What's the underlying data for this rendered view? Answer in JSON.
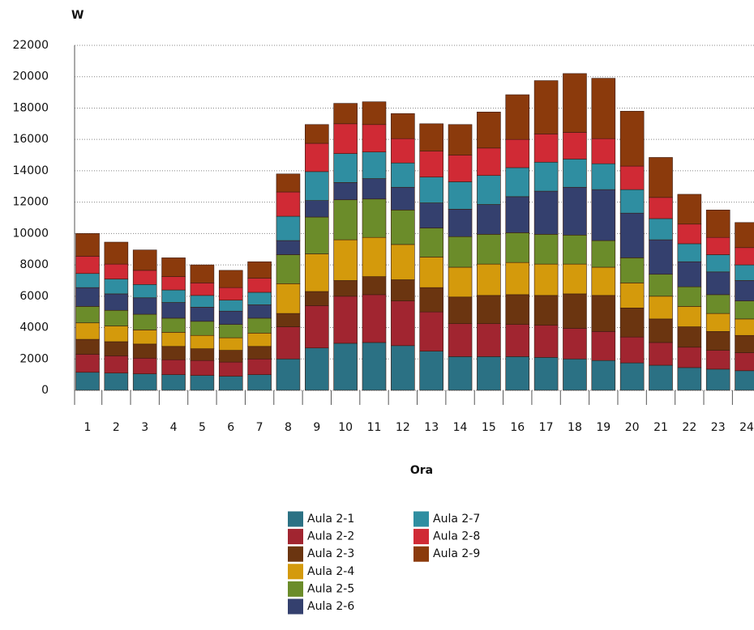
{
  "chart_data": {
    "type": "stacked_bar",
    "y_label": "W",
    "x_label": "Ora",
    "categories": [
      "1",
      "2",
      "3",
      "4",
      "5",
      "6",
      "7",
      "8",
      "9",
      "10",
      "11",
      "12",
      "13",
      "14",
      "15",
      "16",
      "17",
      "18",
      "19",
      "20",
      "21",
      "22",
      "23",
      "24"
    ],
    "ylim": [
      0,
      22000
    ],
    "yticks": [
      0,
      2000,
      4000,
      6000,
      8000,
      10000,
      12000,
      14000,
      16000,
      18000,
      20000,
      22000
    ],
    "grid": true,
    "series": [
      {
        "name": "Aula 2-1",
        "color": "#2b7184",
        "values": [
          1150,
          1100,
          1050,
          1000,
          950,
          900,
          1000,
          2000,
          2700,
          3000,
          3050,
          2850,
          2500,
          2150,
          2150,
          2150,
          2100,
          2000,
          1900,
          1750,
          1600,
          1450,
          1350,
          1250
        ]
      },
      {
        "name": "Aula 2-2",
        "color": "#a12530",
        "values": [
          1150,
          1100,
          1000,
          950,
          950,
          900,
          1000,
          2050,
          2700,
          3000,
          3050,
          2850,
          2500,
          2100,
          2100,
          2050,
          2050,
          1950,
          1850,
          1650,
          1450,
          1300,
          1200,
          1150
        ]
      },
      {
        "name": "Aula 2-3",
        "color": "#6b3510",
        "values": [
          950,
          900,
          900,
          850,
          750,
          750,
          800,
          850,
          900,
          1000,
          1150,
          1350,
          1550,
          1700,
          1800,
          1900,
          1900,
          2200,
          2300,
          1850,
          1500,
          1300,
          1200,
          1100
        ]
      },
      {
        "name": "Aula 2-4",
        "color": "#d49a0c",
        "values": [
          1050,
          1000,
          900,
          900,
          850,
          800,
          850,
          1900,
          2400,
          2600,
          2500,
          2250,
          1950,
          1900,
          2000,
          2050,
          2000,
          1900,
          1800,
          1600,
          1450,
          1300,
          1150,
          1050
        ]
      },
      {
        "name": "Aula 2-5",
        "color": "#6b8c2a",
        "values": [
          1050,
          1000,
          1000,
          900,
          900,
          850,
          950,
          1850,
          2350,
          2550,
          2450,
          2200,
          1850,
          1950,
          1900,
          1900,
          1900,
          1850,
          1700,
          1600,
          1400,
          1250,
          1200,
          1150
        ]
      },
      {
        "name": "Aula 2-6",
        "color": "#34406e",
        "values": [
          1200,
          1050,
          1050,
          1000,
          900,
          850,
          850,
          900,
          1050,
          1100,
          1300,
          1450,
          1600,
          1750,
          1900,
          2300,
          2750,
          3050,
          3250,
          2850,
          2200,
          1600,
          1450,
          1300
        ]
      },
      {
        "name": "Aula 2-7",
        "color": "#2f8ea1",
        "values": [
          900,
          950,
          850,
          800,
          750,
          700,
          800,
          1550,
          1850,
          1850,
          1700,
          1550,
          1650,
          1750,
          1850,
          1850,
          1850,
          1800,
          1650,
          1500,
          1350,
          1150,
          1100,
          1000
        ]
      },
      {
        "name": "Aula 2-8",
        "color": "#d02a35",
        "values": [
          1100,
          950,
          900,
          850,
          800,
          800,
          900,
          1550,
          1800,
          1900,
          1750,
          1550,
          1650,
          1700,
          1750,
          1800,
          1800,
          1700,
          1600,
          1500,
          1350,
          1250,
          1100,
          1100
        ]
      },
      {
        "name": "Aula 2-9",
        "color": "#8b3a0c",
        "values": [
          1450,
          1400,
          1300,
          1200,
          1150,
          1100,
          1050,
          1150,
          1200,
          1300,
          1450,
          1600,
          1750,
          1950,
          2300,
          2850,
          3400,
          3750,
          3850,
          3500,
          2550,
          1900,
          1750,
          1600
        ]
      }
    ]
  }
}
